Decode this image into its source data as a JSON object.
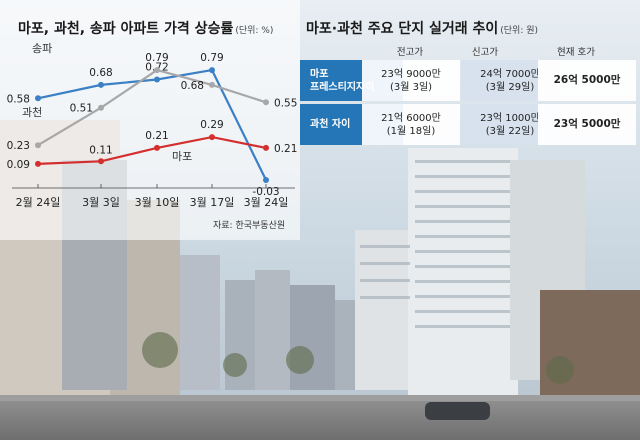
{
  "chart": {
    "title": "마포, 과천, 송파 아파트 가격 상승률",
    "unit": "(단위: %)",
    "source": "자료: 한국부동산원"
  },
  "chart_data": {
    "type": "line",
    "categories": [
      "2월 24일",
      "3월 3일",
      "3월 10일",
      "3월 17일",
      "3월 24일"
    ],
    "series": [
      {
        "name": "송파",
        "values": [
          0.58,
          0.68,
          0.72,
          0.79,
          -0.03
        ],
        "color": "#3b7fc4"
      },
      {
        "name": "과천",
        "values": [
          0.23,
          0.51,
          0.79,
          0.68,
          0.55
        ],
        "color": "#a8a8a8"
      },
      {
        "name": "마포",
        "values": [
          0.09,
          0.11,
          0.21,
          0.29,
          0.21
        ],
        "color": "#d42f2f"
      }
    ],
    "ylim": [
      -0.1,
      0.9
    ]
  },
  "table": {
    "title": "마포·과천 주요 단지 실거래 추이",
    "unit": "(단위: 원)",
    "headers": [
      "전고가",
      "신고가",
      "현재 호가"
    ],
    "rows": [
      {
        "name_line1": "마포",
        "name_line2": "프레스티지자이",
        "prev_price": "23억 9000만",
        "prev_date": "(3월 3일)",
        "high_price": "24억 7000만",
        "high_date": "(3월 29일)",
        "current": "26억 5000만"
      },
      {
        "name_line1": "과천 자이",
        "name_line2": "",
        "prev_price": "21억 6000만",
        "prev_date": "(1월 18일)",
        "high_price": "23억 1000만",
        "high_date": "(3월 22일)",
        "current": "23억 5000만"
      }
    ]
  }
}
